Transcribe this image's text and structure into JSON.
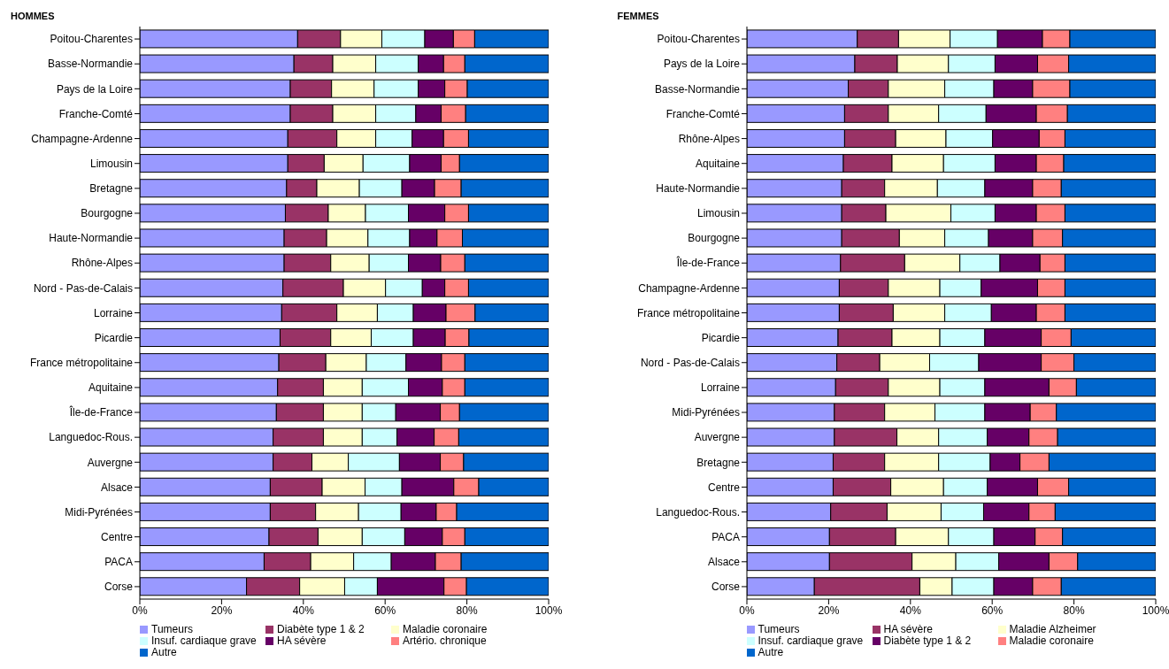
{
  "chart_data": [
    {
      "type": "bar",
      "orientation": "horizontal",
      "stacked": true,
      "title": "HOMMES",
      "legend": "bottom",
      "grid": false,
      "categories": [
        "Poitou-Charentes",
        "Basse-Normandie",
        "Pays de la Loire",
        "Franche-Comté",
        "Champagne-Ardenne",
        "Limousin",
        "Bretagne",
        "Bourgogne",
        "Haute-Normandie",
        "Rhône-Alpes",
        "Nord - Pas-de-Calais",
        "Lorraine",
        "Picardie",
        "France métropolitaine",
        "Aquitaine",
        "Île-de-France",
        "Languedoc-Rous.",
        "Auvergne",
        "Alsace",
        "Midi-Pyrénées",
        "Centre",
        "PACA",
        "Corse"
      ],
      "xlim": [
        0,
        100
      ],
      "xticks": [
        {
          "value": 0,
          "label": "0%"
        },
        {
          "value": 20,
          "label": "20%"
        },
        {
          "value": 40,
          "label": "40%"
        },
        {
          "value": 60,
          "label": "60%"
        },
        {
          "value": 80,
          "label": "80%"
        },
        {
          "value": 100,
          "label": "100%"
        }
      ],
      "series": [
        {
          "name": "Tumeurs",
          "color": "#9999ff",
          "values": [
            38.6,
            37.7,
            36.8,
            36.8,
            36.2,
            36.2,
            35.9,
            35.6,
            35.3,
            35.3,
            35.0,
            34.7,
            34.3,
            34.0,
            33.7,
            33.4,
            32.6,
            32.6,
            31.9,
            31.9,
            31.6,
            30.4,
            26.1
          ]
        },
        {
          "name": "Diabète type 1 & 2",
          "color": "#993366",
          "values": [
            10.5,
            9.5,
            10.1,
            10.4,
            12.0,
            8.9,
            7.4,
            10.5,
            10.4,
            11.4,
            14.8,
            13.5,
            12.4,
            11.5,
            11.2,
            11.5,
            12.3,
            9.5,
            12.7,
            11.1,
            12.0,
            11.4,
            13.0
          ]
        },
        {
          "name": "Maladie coronaire",
          "color": "#ffffcc",
          "values": [
            10.1,
            10.5,
            10.4,
            10.5,
            9.5,
            9.5,
            10.4,
            9.1,
            10.1,
            9.4,
            10.3,
            9.9,
            9.9,
            9.9,
            9.5,
            9.5,
            9.5,
            8.9,
            10.5,
            10.5,
            10.8,
            10.5,
            11.0
          ]
        },
        {
          "name": "Insuf. cardiaque grave",
          "color": "#ccffff",
          "values": [
            10.5,
            10.4,
            10.8,
            9.8,
            8.9,
            11.4,
            10.4,
            10.5,
            10.2,
            9.6,
            9.0,
            8.8,
            10.3,
            9.7,
            11.3,
            8.2,
            8.5,
            12.5,
            9.0,
            10.4,
            10.4,
            9.2,
            8.0
          ]
        },
        {
          "name": "HA sévère",
          "color": "#660066",
          "values": [
            7.0,
            6.2,
            6.5,
            6.2,
            7.7,
            7.7,
            8.0,
            8.9,
            6.7,
            7.9,
            5.5,
            8.0,
            7.8,
            8.7,
            8.3,
            10.9,
            9.1,
            10.0,
            12.7,
            8.6,
            9.2,
            10.8,
            16.3
          ]
        },
        {
          "name": "Artério. chronique",
          "color": "#ff8080",
          "values": [
            5.2,
            5.2,
            5.5,
            6.0,
            6.1,
            4.5,
            6.5,
            5.8,
            6.2,
            5.9,
            5.8,
            7.1,
            5.8,
            5.7,
            5.5,
            4.7,
            6.0,
            5.7,
            6.1,
            5.0,
            5.5,
            6.3,
            5.5
          ]
        },
        {
          "name": "Autre",
          "color": "#0066cc",
          "values": [
            18.1,
            20.5,
            19.9,
            20.3,
            19.6,
            21.8,
            21.4,
            19.6,
            21.1,
            20.5,
            19.6,
            18.0,
            19.5,
            20.5,
            20.5,
            21.8,
            22.0,
            20.8,
            17.1,
            22.5,
            20.5,
            21.4,
            20.1
          ]
        }
      ]
    },
    {
      "type": "bar",
      "orientation": "horizontal",
      "stacked": true,
      "title": "FEMMES",
      "legend": "bottom",
      "grid": false,
      "categories": [
        "Poitou-Charentes",
        "Pays de la Loire",
        "Basse-Normandie",
        "Franche-Comté",
        "Rhône-Alpes",
        "Aquitaine",
        "Haute-Normandie",
        "Limousin",
        "Bourgogne",
        "Île-de-France",
        "Champagne-Ardenne",
        "France métropolitaine",
        "Picardie",
        "Nord - Pas-de-Calais",
        "Lorraine",
        "Midi-Pyrénées",
        "Auvergne",
        "Bretagne",
        "Centre",
        "Languedoc-Rous.",
        "PACA",
        "Alsace",
        "Corse"
      ],
      "xlim": [
        0,
        100
      ],
      "xticks": [
        {
          "value": 0,
          "label": "0%"
        },
        {
          "value": 20,
          "label": "20%"
        },
        {
          "value": 40,
          "label": "40%"
        },
        {
          "value": 60,
          "label": "60%"
        },
        {
          "value": 80,
          "label": "80%"
        },
        {
          "value": 100,
          "label": "100%"
        }
      ],
      "series": [
        {
          "name": "Tumeurs",
          "color": "#9999ff",
          "values": [
            27.0,
            26.4,
            24.8,
            23.9,
            23.9,
            23.6,
            23.2,
            23.2,
            23.2,
            22.9,
            22.6,
            22.6,
            22.3,
            22.0,
            21.7,
            21.4,
            21.4,
            21.1,
            21.1,
            20.5,
            20.2,
            20.2,
            16.5
          ]
        },
        {
          "name": "HA sévère",
          "color": "#993366",
          "values": [
            10.1,
            10.4,
            9.8,
            10.7,
            12.5,
            11.9,
            10.5,
            10.8,
            14.1,
            15.7,
            12.0,
            13.2,
            13.2,
            10.5,
            12.9,
            12.3,
            15.3,
            12.6,
            14.1,
            13.8,
            16.2,
            20.2,
            25.8
          ]
        },
        {
          "name": "Maladie Alzheimer",
          "color": "#ffffcc",
          "values": [
            12.6,
            12.5,
            13.8,
            12.3,
            12.3,
            12.6,
            12.9,
            15.9,
            11.1,
            13.5,
            12.6,
            12.6,
            11.7,
            12.2,
            12.6,
            12.3,
            10.2,
            13.2,
            12.9,
            13.2,
            12.9,
            10.7,
            7.9
          ]
        },
        {
          "name": "Insuf. cardiaque grave",
          "color": "#ccffff",
          "values": [
            11.6,
            11.4,
            12.0,
            11.6,
            11.4,
            12.6,
            11.6,
            10.8,
            10.7,
            9.8,
            10.1,
            11.4,
            11.0,
            12.0,
            11.0,
            12.2,
            11.9,
            12.6,
            10.7,
            10.4,
            11.1,
            10.5,
            10.2
          ]
        },
        {
          "name": "Diabète type 1 & 2",
          "color": "#660066",
          "values": [
            11.0,
            10.4,
            9.5,
            12.3,
            11.4,
            10.1,
            11.7,
            10.1,
            10.8,
            9.8,
            13.8,
            11.0,
            13.8,
            15.3,
            15.7,
            11.1,
            10.2,
            7.3,
            12.3,
            11.1,
            10.1,
            12.3,
            9.5
          ]
        },
        {
          "name": "Maladie coronaire",
          "color": "#ff8080",
          "values": [
            6.7,
            7.6,
            9.1,
            7.6,
            6.3,
            6.7,
            7.0,
            7.0,
            7.3,
            6.1,
            6.7,
            7.0,
            7.3,
            8.0,
            6.7,
            6.4,
            7.0,
            7.1,
            7.6,
            6.4,
            6.7,
            7.0,
            7.0
          ]
        },
        {
          "name": "Autre",
          "color": "#0066cc",
          "values": [
            21.0,
            21.3,
            21.0,
            21.6,
            22.2,
            22.5,
            23.1,
            22.2,
            22.8,
            22.2,
            22.2,
            22.2,
            20.7,
            20.0,
            19.4,
            24.3,
            24.0,
            26.1,
            21.3,
            24.6,
            22.8,
            19.1,
            23.1
          ]
        }
      ]
    }
  ]
}
